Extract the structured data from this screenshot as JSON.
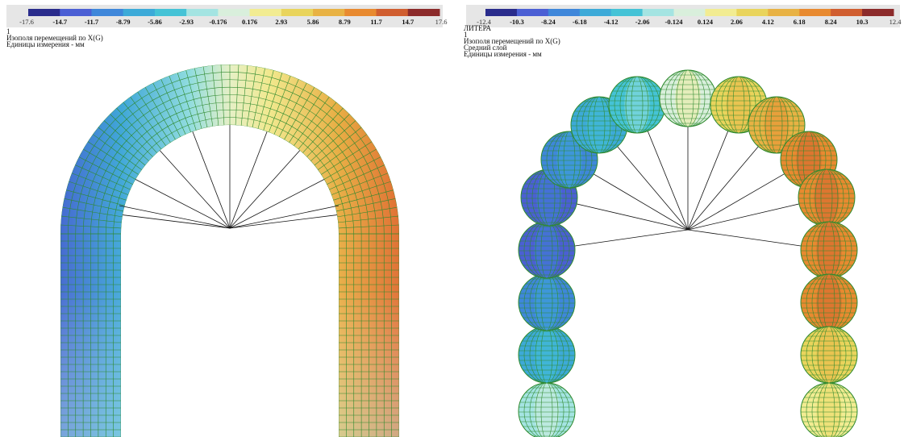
{
  "panels": [
    {
      "legend": {
        "labels": [
          "-17.6",
          "-14.7",
          "-11.7",
          "-8.79",
          "-5.86",
          "-2.93",
          "-0.176",
          "0.176",
          "2.93",
          "5.86",
          "8.79",
          "11.7",
          "14.7",
          "17.6"
        ],
        "colors": [
          "#2a2c8c",
          "#4b5fd4",
          "#3f87da",
          "#3daad8",
          "#45c3d6",
          "#a4e4e2",
          "#d9efdc",
          "#f2ec92",
          "#e9d45c",
          "#e8b244",
          "#e88a30",
          "#d05e30",
          "#8c2b2b"
        ]
      },
      "caption": [
        "1",
        "Изополя перемещений по X(G)",
        "Единицы измерения - мм"
      ]
    },
    {
      "legend": {
        "labels": [
          "-12.4",
          "-10.3",
          "-8.24",
          "-6.18",
          "-4.12",
          "-2.06",
          "-0.124",
          "0.124",
          "2.06",
          "4.12",
          "6.18",
          "8.24",
          "10.3",
          "12.4"
        ],
        "colors": [
          "#2a2c8c",
          "#4b5fd4",
          "#3f87da",
          "#3daad8",
          "#45c3d6",
          "#a4e4e2",
          "#d9efdc",
          "#f2ec92",
          "#e9d45c",
          "#e8b244",
          "#e88a30",
          "#d05e30",
          "#8c2b2b"
        ]
      },
      "caption": [
        "ЛИТЕРА",
        "1",
        "Изополя перемещений по X(G)",
        "Средний слой",
        "Единицы измерения - мм"
      ]
    }
  ]
}
